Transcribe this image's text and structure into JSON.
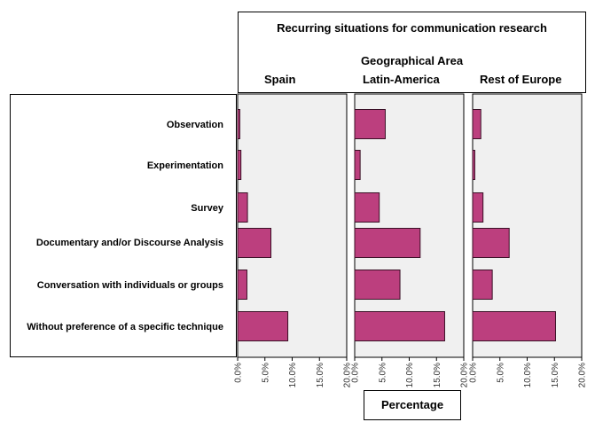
{
  "chart_data": {
    "type": "bar",
    "orientation": "horizontal",
    "title": "Recurring situations for communication research",
    "facet_title": "Geographical Area",
    "xlabel": "Percentage",
    "xlim": [
      0,
      20
    ],
    "x_ticks": [
      "0.0%",
      "5.0%",
      "10.0%",
      "15.0%",
      "20.0%"
    ],
    "categories": [
      "Observation",
      "Experimentation",
      "Survey",
      "Documentary and/or Discourse Analysis",
      "Conversation with individuals or groups",
      "Without preference of a specific technique"
    ],
    "series": [
      {
        "name": "Spain",
        "values": [
          0.4,
          0.6,
          1.8,
          6.1,
          1.7,
          9.2
        ]
      },
      {
        "name": "Latin-America",
        "values": [
          5.6,
          1.0,
          4.5,
          12.0,
          8.3,
          16.5
        ]
      },
      {
        "name": "Rest of Europe",
        "values": [
          1.5,
          0.4,
          1.9,
          6.7,
          3.6,
          15.2
        ]
      }
    ],
    "bar_color": "#bc3f7e",
    "panel_background": "#f0f0f0",
    "grid": false
  }
}
